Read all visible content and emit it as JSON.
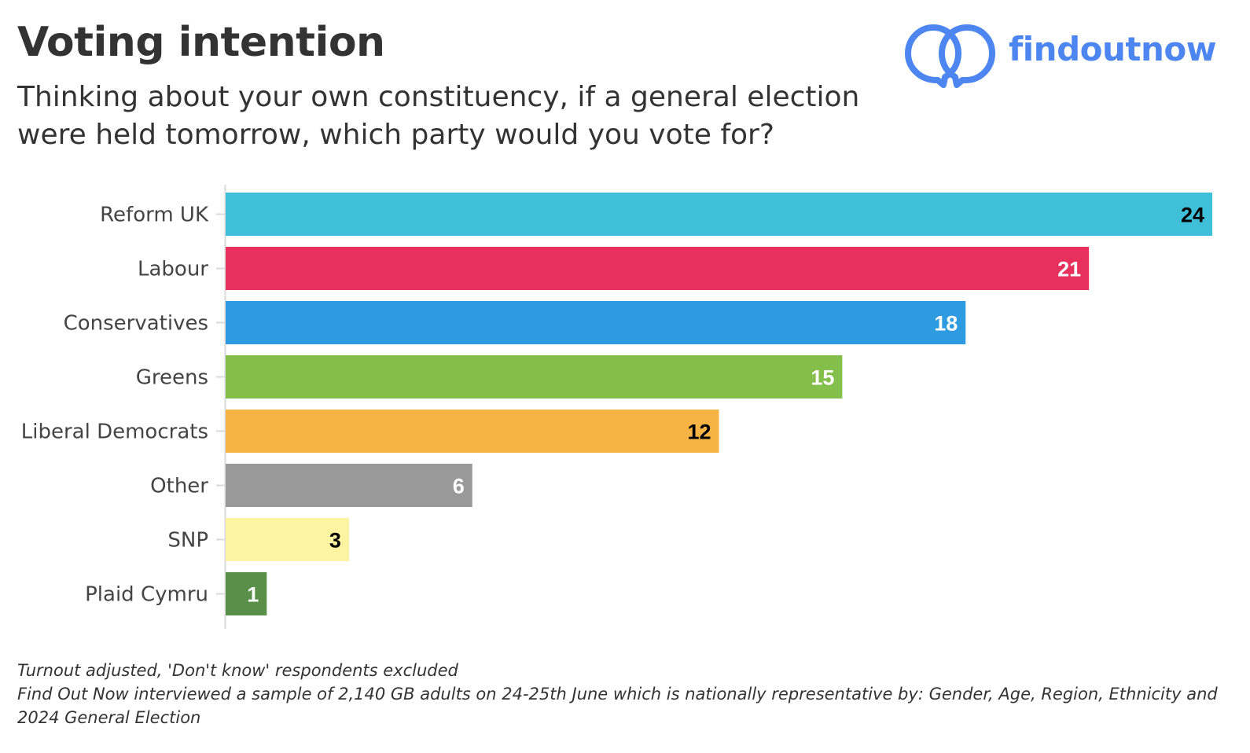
{
  "header": {
    "title": "Voting intention",
    "subtitle": "Thinking about your own constituency, if a general election were held tomorrow, which party would you vote for?"
  },
  "logo": {
    "text": "findoutnow",
    "icon": "linked-speech-bubbles-icon",
    "color": "#4d86f0"
  },
  "chart_data": {
    "type": "bar",
    "orientation": "horizontal",
    "categories": [
      "Reform UK",
      "Labour",
      "Conservatives",
      "Greens",
      "Liberal Democrats",
      "Other",
      "SNP",
      "Plaid Cymru"
    ],
    "values": [
      24,
      21,
      18,
      15,
      12,
      6,
      3,
      1
    ],
    "colors": [
      "#40c0d8",
      "#e8305f",
      "#2e9ae0",
      "#85bf4b",
      "#f7b343",
      "#999999",
      "#fdf3a0",
      "#5a8f4a"
    ],
    "label_colors": [
      "#000000",
      "#ffffff",
      "#ffffff",
      "#ffffff",
      "#000000",
      "#ffffff",
      "#000000",
      "#ffffff"
    ],
    "data_labels": true,
    "xlim": [
      0,
      24
    ],
    "grid": false,
    "legend": "none"
  },
  "footnote": {
    "line1": "Turnout adjusted, 'Don't know' respondents excluded",
    "line2": "Find Out Now interviewed a sample of 2,140 GB adults on 24-25th June which is nationally representative by: Gender, Age, Region, Ethnicity and 2024 General Election"
  }
}
